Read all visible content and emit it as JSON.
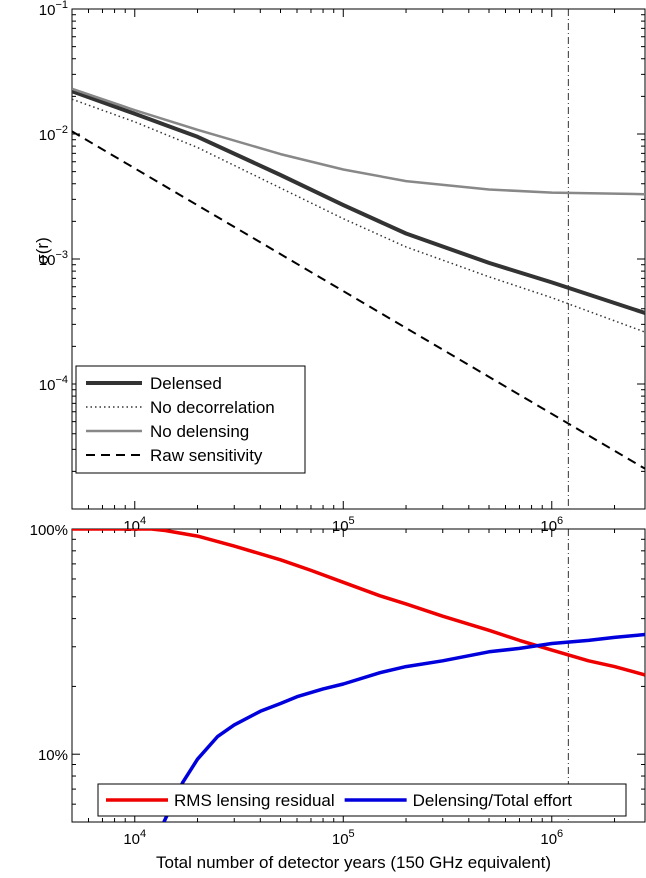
{
  "chart_data": [
    {
      "type": "line",
      "ylabel": "σ(r)",
      "xscale": "log",
      "yscale": "log",
      "xlim": [
        5000,
        2800000
      ],
      "ylim": [
        1e-05,
        0.1
      ],
      "xticks": [
        {
          "value": 10000,
          "base": "10",
          "exp": "4"
        },
        {
          "value": 100000,
          "base": "10",
          "exp": "5"
        },
        {
          "value": 1000000,
          "base": "10",
          "exp": "6"
        }
      ],
      "yticks": [
        {
          "value": 0.1,
          "base": "10",
          "exp": "−1"
        },
        {
          "value": 0.01,
          "base": "10",
          "exp": "−2"
        },
        {
          "value": 0.001,
          "base": "10",
          "exp": "−3"
        },
        {
          "value": 0.0001,
          "base": "10",
          "exp": "−4"
        }
      ],
      "vline_x": 1200000,
      "legend_position": "bottom-left",
      "series": [
        {
          "name": "Delensed",
          "color": "#333333",
          "dash": "solid",
          "width": 4,
          "x": [
            5000,
            10000,
            20000,
            50000,
            100000,
            200000,
            500000,
            1000000,
            2800000
          ],
          "y": [
            0.022,
            0.0145,
            0.0095,
            0.0047,
            0.0027,
            0.0016,
            0.00093,
            0.00065,
            0.00037
          ]
        },
        {
          "name": "No decorrelation",
          "color": "#333333",
          "dash": "dotted",
          "width": 1.5,
          "x": [
            5000,
            10000,
            20000,
            50000,
            100000,
            200000,
            500000,
            1000000,
            2800000
          ],
          "y": [
            0.019,
            0.0125,
            0.0078,
            0.0037,
            0.0021,
            0.00125,
            0.00072,
            0.00049,
            0.00026
          ]
        },
        {
          "name": "No delensing",
          "color": "#888888",
          "dash": "solid",
          "width": 2.5,
          "x": [
            5000,
            10000,
            20000,
            50000,
            100000,
            200000,
            500000,
            1000000,
            2800000
          ],
          "y": [
            0.023,
            0.0155,
            0.0108,
            0.0069,
            0.0052,
            0.0042,
            0.0036,
            0.0034,
            0.0033
          ]
        },
        {
          "name": "Raw sensitivity",
          "color": "#000000",
          "dash": "dashed",
          "width": 2,
          "x": [
            5000,
            2800000
          ],
          "y": [
            0.0105,
            2.1e-05
          ]
        }
      ]
    },
    {
      "type": "line",
      "xlabel": "Total number of detector years (150 GHz equivalent)",
      "xscale": "log",
      "yscale": "log",
      "xlim": [
        5000,
        2800000
      ],
      "ylim": [
        0.05,
        1.0
      ],
      "xticks": [
        {
          "value": 10000,
          "base": "10",
          "exp": "4"
        },
        {
          "value": 100000,
          "base": "10",
          "exp": "5"
        },
        {
          "value": 1000000,
          "base": "10",
          "exp": "6"
        }
      ],
      "yticks": [
        {
          "value": 1.0,
          "label": "100%"
        },
        {
          "value": 0.1,
          "label": "10%"
        }
      ],
      "vline_x": 1200000,
      "legend_position": "bottom",
      "series": [
        {
          "name": "RMS lensing residual",
          "color": "#ee0000",
          "width": 3.5,
          "x": [
            5000,
            12000,
            14000,
            20000,
            30000,
            50000,
            70000,
            100000,
            150000,
            200000,
            300000,
            500000,
            700000,
            1000000,
            1500000,
            2000000,
            2800000
          ],
          "y": [
            1.0,
            1.0,
            0.985,
            0.93,
            0.84,
            0.73,
            0.655,
            0.58,
            0.505,
            0.465,
            0.41,
            0.355,
            0.32,
            0.29,
            0.26,
            0.245,
            0.225
          ]
        },
        {
          "name": "Delensing/Total effort",
          "color": "#0000dd",
          "width": 3.5,
          "x": [
            13800,
            17000,
            20000,
            25000,
            30000,
            40000,
            50000,
            60000,
            80000,
            100000,
            150000,
            200000,
            300000,
            500000,
            700000,
            1000000,
            1500000,
            2000000,
            2800000
          ],
          "y": [
            0.05,
            0.075,
            0.095,
            0.12,
            0.135,
            0.155,
            0.168,
            0.18,
            0.195,
            0.205,
            0.23,
            0.245,
            0.26,
            0.285,
            0.295,
            0.31,
            0.32,
            0.33,
            0.34
          ]
        }
      ]
    }
  ]
}
